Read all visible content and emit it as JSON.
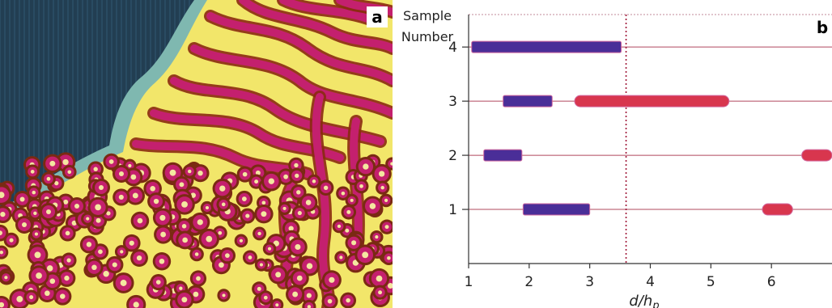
{
  "panel_a": {
    "label": "a"
  },
  "chart_data": {
    "type": "bar",
    "panel_label": "b",
    "ylabel_lines": [
      "Sample",
      "Number"
    ],
    "xlabel": "d/h",
    "xlabel_subscript": "p",
    "xlim": [
      1,
      7
    ],
    "ylim": [
      0,
      4.6
    ],
    "xticks": [
      1,
      2,
      3,
      4,
      5,
      6
    ],
    "xtick_labels": [
      "1",
      "2",
      "3",
      "4",
      "5",
      "6"
    ],
    "yticks": [
      1,
      2,
      3,
      4
    ],
    "ytick_labels": [
      "1",
      "2",
      "3",
      "4"
    ],
    "grid": true,
    "reference_line": {
      "x": 3.6,
      "style": "dotted"
    },
    "colors": {
      "blue": "#4a2e98",
      "red": "#d8364e",
      "grid": "#b0485e",
      "dotted": "#a01838"
    },
    "series": [
      {
        "color": "blue",
        "ranges": [
          {
            "sample": 4,
            "start": 1.05,
            "end": 3.52
          },
          {
            "sample": 3,
            "start": 1.57,
            "end": 2.38
          },
          {
            "sample": 2,
            "start": 1.25,
            "end": 1.88
          },
          {
            "sample": 1,
            "start": 1.9,
            "end": 3.0
          }
        ]
      },
      {
        "color": "red",
        "ranges": [
          {
            "sample": 3,
            "start": 2.75,
            "end": 5.3
          },
          {
            "sample": 2,
            "start": 6.5,
            "end": 7.0
          },
          {
            "sample": 1,
            "start": 5.85,
            "end": 6.35
          }
        ]
      }
    ]
  }
}
